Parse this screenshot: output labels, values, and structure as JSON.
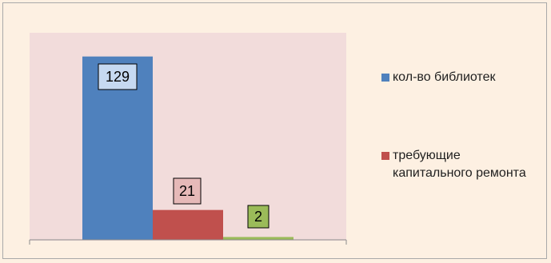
{
  "chart_data": {
    "type": "bar",
    "categories": [
      ""
    ],
    "series": [
      {
        "name": "кол-во библиотек",
        "values": [
          129
        ],
        "color": "#4f81bd"
      },
      {
        "name": "требующие капитального ремонта",
        "values": [
          21
        ],
        "color": "#c0504d"
      },
      {
        "name": "",
        "values": [
          2
        ],
        "color": "#9bbb59"
      }
    ],
    "data_labels": [
      "129",
      "21",
      "2"
    ],
    "data_label_backgrounds": [
      "#c6d9f1",
      "#e6b9b8",
      "#9bbb59"
    ],
    "title": "",
    "xlabel": "",
    "ylabel": "",
    "ylim": [
      0,
      135
    ],
    "grid": false,
    "legend_position": "right",
    "plot_background": "#f2dcdb"
  },
  "legend": {
    "items": [
      {
        "label": "кол-во библиотек",
        "color": "#4f81bd"
      },
      {
        "label": "требующие капитального ремонта",
        "color": "#c0504d"
      }
    ]
  }
}
